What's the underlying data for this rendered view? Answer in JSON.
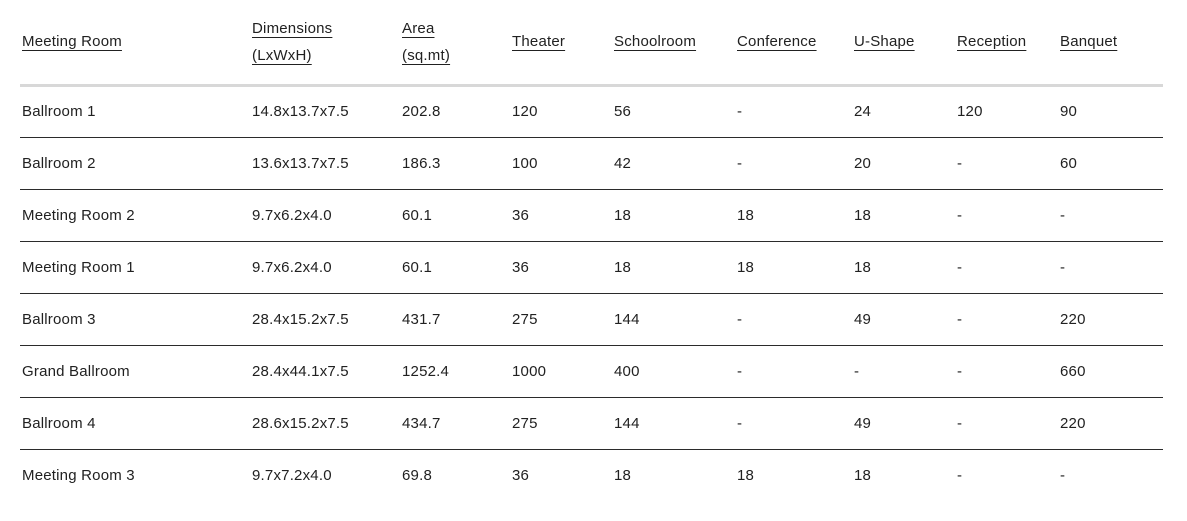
{
  "table": {
    "headers": [
      {
        "line1": "Meeting Room",
        "line2": ""
      },
      {
        "line1": "Dimensions",
        "line2": "(LxWxH)"
      },
      {
        "line1": "Area",
        "line2": "(sq.mt)"
      },
      {
        "line1": "Theater",
        "line2": ""
      },
      {
        "line1": "Schoolroom",
        "line2": ""
      },
      {
        "line1": "Conference",
        "line2": ""
      },
      {
        "line1": "U-Shape",
        "line2": ""
      },
      {
        "line1": "Reception",
        "line2": ""
      },
      {
        "line1": "Banquet",
        "line2": ""
      }
    ],
    "rows": [
      [
        "Ballroom 1",
        "14.8x13.7x7.5",
        "202.8",
        "120",
        "56",
        "-",
        "24",
        "120",
        "90"
      ],
      [
        "Ballroom 2",
        "13.6x13.7x7.5",
        "186.3",
        "100",
        "42",
        "-",
        "20",
        "-",
        "60"
      ],
      [
        "Meeting Room 2",
        "9.7x6.2x4.0",
        "60.1",
        "36",
        "18",
        "18",
        "18",
        "-",
        "-"
      ],
      [
        "Meeting Room 1",
        "9.7x6.2x4.0",
        "60.1",
        "36",
        "18",
        "18",
        "18",
        "-",
        "-"
      ],
      [
        "Ballroom 3",
        "28.4x15.2x7.5",
        "431.7",
        "275",
        "144",
        "-",
        "49",
        "-",
        "220"
      ],
      [
        "Grand Ballroom",
        "28.4x44.1x7.5",
        "1252.4",
        "1000",
        "400",
        "-",
        "-",
        "-",
        "660"
      ],
      [
        "Ballroom 4",
        "28.6x15.2x7.5",
        "434.7",
        "275",
        "144",
        "-",
        "49",
        "-",
        "220"
      ],
      [
        "Meeting Room 3",
        "9.7x7.2x4.0",
        "69.8",
        "36",
        "18",
        "18",
        "18",
        "-",
        "-"
      ]
    ],
    "colors": {
      "text": "#212121",
      "header_separator": "#d8d8d8",
      "row_separator": "#2b2b2b",
      "background": "#ffffff"
    }
  }
}
